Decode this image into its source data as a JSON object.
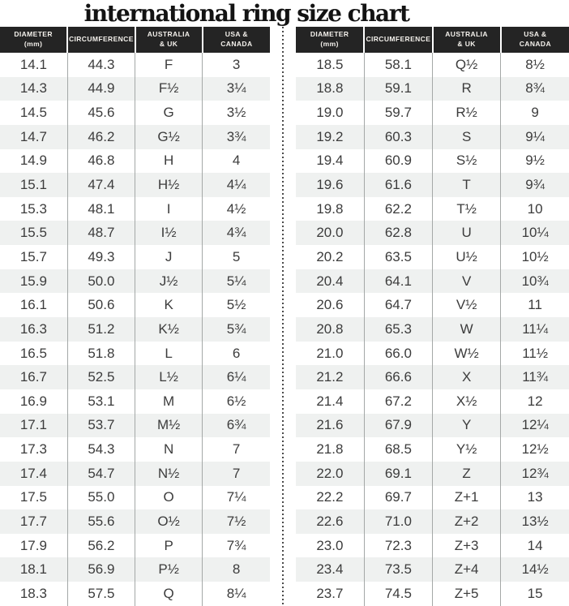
{
  "chart_data": {
    "type": "table",
    "title": "international ring size chart",
    "columns": [
      "DIAMETER\n(mm)",
      "CIRCUMFERENCE",
      "AUSTRALIA\n& UK",
      "USA &\nCANADA"
    ],
    "layout": {
      "panels": 2,
      "panel_separator": "vertical dotted line",
      "row_striping": "alternating white and light gray"
    },
    "colors": {
      "header_bg": "#242424",
      "header_text": "#f4f1ec",
      "row_alt": "#eff1f0",
      "body_text": "#3c3c3c",
      "col_divider": "#a4a8a7",
      "dot_color": "#4a4a4a",
      "title_color": "#131313"
    },
    "tables": {
      "left": {
        "rows": [
          [
            "14.1",
            "44.3",
            "F",
            "3"
          ],
          [
            "14.3",
            "44.9",
            "F½",
            "3¼"
          ],
          [
            "14.5",
            "45.6",
            "G",
            "3½"
          ],
          [
            "14.7",
            "46.2",
            "G½",
            "3¾"
          ],
          [
            "14.9",
            "46.8",
            "H",
            "4"
          ],
          [
            "15.1",
            "47.4",
            "H½",
            "4¼"
          ],
          [
            "15.3",
            "48.1",
            "I",
            "4½"
          ],
          [
            "15.5",
            "48.7",
            "I½",
            "4¾"
          ],
          [
            "15.7",
            "49.3",
            "J",
            "5"
          ],
          [
            "15.9",
            "50.0",
            "J½",
            "5¼"
          ],
          [
            "16.1",
            "50.6",
            "K",
            "5½"
          ],
          [
            "16.3",
            "51.2",
            "K½",
            "5¾"
          ],
          [
            "16.5",
            "51.8",
            "L",
            "6"
          ],
          [
            "16.7",
            "52.5",
            "L½",
            "6¼"
          ],
          [
            "16.9",
            "53.1",
            "M",
            "6½"
          ],
          [
            "17.1",
            "53.7",
            "M½",
            "6¾"
          ],
          [
            "17.3",
            "54.3",
            "N",
            "7"
          ],
          [
            "17.4",
            "54.7",
            "N½",
            "7"
          ],
          [
            "17.5",
            "55.0",
            "O",
            "7¼"
          ],
          [
            "17.7",
            "55.6",
            "O½",
            "7½"
          ],
          [
            "17.9",
            "56.2",
            "P",
            "7¾"
          ],
          [
            "18.1",
            "56.9",
            "P½",
            "8"
          ],
          [
            "18.3",
            "57.5",
            "Q",
            "8¼"
          ]
        ]
      },
      "right": {
        "rows": [
          [
            "18.5",
            "58.1",
            "Q½",
            "8½"
          ],
          [
            "18.8",
            "59.1",
            "R",
            "8¾"
          ],
          [
            "19.0",
            "59.7",
            "R½",
            "9"
          ],
          [
            "19.2",
            "60.3",
            "S",
            "9¼"
          ],
          [
            "19.4",
            "60.9",
            "S½",
            "9½"
          ],
          [
            "19.6",
            "61.6",
            "T",
            "9¾"
          ],
          [
            "19.8",
            "62.2",
            "T½",
            "10"
          ],
          [
            "20.0",
            "62.8",
            "U",
            "10¼"
          ],
          [
            "20.2",
            "63.5",
            "U½",
            "10½"
          ],
          [
            "20.4",
            "64.1",
            "V",
            "10¾"
          ],
          [
            "20.6",
            "64.7",
            "V½",
            "11"
          ],
          [
            "20.8",
            "65.3",
            "W",
            "11¼"
          ],
          [
            "21.0",
            "66.0",
            "W½",
            "11½"
          ],
          [
            "21.2",
            "66.6",
            "X",
            "11¾"
          ],
          [
            "21.4",
            "67.2",
            "X½",
            "12"
          ],
          [
            "21.6",
            "67.9",
            "Y",
            "12¼"
          ],
          [
            "21.8",
            "68.5",
            "Y½",
            "12½"
          ],
          [
            "22.0",
            "69.1",
            "Z",
            "12¾"
          ],
          [
            "22.2",
            "69.7",
            "Z+1",
            "13"
          ],
          [
            "22.6",
            "71.0",
            "Z+2",
            "13½"
          ],
          [
            "23.0",
            "72.3",
            "Z+3",
            "14"
          ],
          [
            "23.4",
            "73.5",
            "Z+4",
            "14½"
          ],
          [
            "23.7",
            "74.5",
            "Z+5",
            "15"
          ]
        ]
      }
    }
  }
}
